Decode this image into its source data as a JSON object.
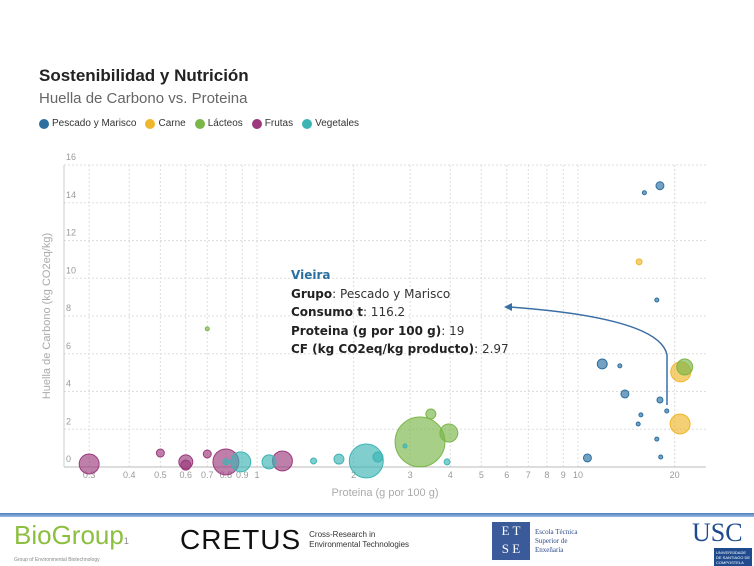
{
  "chart_data": {
    "type": "scatter",
    "title": "Sostenibilidad y Nutrición",
    "subtitle": "Huella de Carbono vs. Proteina",
    "xlabel": "Proteina (g por 100 g)",
    "ylabel": "Huella de Carbono (kg CO2eq/kg)",
    "xscale": "log",
    "xlim": [
      0.25,
      25
    ],
    "ylim": [
      0,
      16
    ],
    "xticks": [
      "0.3",
      "0.4",
      "0.5",
      "0.6",
      "0.7",
      "0.8",
      "0.9",
      "1",
      "2",
      "3",
      "4",
      "5",
      "6",
      "7",
      "8",
      "9",
      "10",
      "20"
    ],
    "xtick_values": [
      0.3,
      0.4,
      0.5,
      0.6,
      0.7,
      0.8,
      0.9,
      1,
      2,
      3,
      4,
      5,
      6,
      7,
      8,
      9,
      10,
      20
    ],
    "yticks": [
      0,
      2,
      4,
      6,
      8,
      10,
      12,
      14,
      16
    ],
    "grid": true,
    "legend_position": "top-left",
    "series": [
      {
        "name": "Pescado y Marisco",
        "color": "#2a6fa0",
        "points": [
          [
            18.0,
            14.9,
            460
          ],
          [
            16.1,
            14.53,
            116
          ],
          [
            17.6,
            8.85,
            116
          ],
          [
            11.9,
            5.46,
            720
          ],
          [
            13.5,
            5.36,
            116
          ],
          [
            14.0,
            3.87,
            460
          ],
          [
            18.0,
            3.55,
            260
          ],
          [
            15.7,
            2.76,
            116
          ],
          [
            15.4,
            2.28,
            116
          ],
          [
            18.9,
            2.97,
            116.2
          ],
          [
            17.6,
            1.48,
            116
          ],
          [
            18.1,
            0.53,
            116
          ],
          [
            10.7,
            0.48,
            460
          ]
        ]
      },
      {
        "name": "Carne",
        "color": "#f0b52a",
        "points": [
          [
            15.5,
            10.87,
            260
          ],
          [
            20.9,
            5.04,
            2900
          ],
          [
            20.8,
            2.28,
            2900
          ]
        ]
      },
      {
        "name": "Lácteos",
        "color": "#7ab648",
        "points": [
          [
            0.7,
            7.32,
            116
          ],
          [
            3.22,
            1.33,
            18100
          ],
          [
            3.48,
            2.81,
            720
          ],
          [
            3.96,
            1.8,
            2350
          ],
          [
            21.5,
            5.3,
            1850
          ]
        ]
      },
      {
        "name": "Frutas",
        "color": "#9b3a7c",
        "points": [
          [
            0.3,
            0.16,
            2900
          ],
          [
            0.5,
            0.74,
            460
          ],
          [
            0.6,
            0.27,
            1420
          ],
          [
            0.6,
            0.1,
            720
          ],
          [
            0.7,
            0.69,
            460
          ],
          [
            0.8,
            0.27,
            4900
          ],
          [
            1.2,
            0.32,
            2900
          ]
        ]
      },
      {
        "name": "Vegetales",
        "color": "#3cb4b4",
        "points": [
          [
            0.8,
            0.27,
            260
          ],
          [
            0.89,
            0.27,
            2900
          ],
          [
            1.09,
            0.27,
            1420
          ],
          [
            1.5,
            0.32,
            260
          ],
          [
            1.8,
            0.42,
            720
          ],
          [
            2.19,
            0.32,
            8400
          ],
          [
            2.38,
            0.53,
            720
          ],
          [
            2.89,
            1.11,
            116
          ],
          [
            3.91,
            0.27,
            260
          ]
        ]
      }
    ],
    "annotation": {
      "name": "Vieira",
      "rows": [
        {
          "k": "Grupo",
          "v": "Pescado y Marisco"
        },
        {
          "k": "Consumo t",
          "v": "116.2"
        },
        {
          "k": "Proteina (g por 100 g)",
          "v": "19"
        },
        {
          "k": "CF (kg CO2eq/kg producto)",
          "v": "2.97"
        }
      ]
    }
  },
  "footer": {
    "logos": [
      "BioGroup",
      "Group of Environmental Biotechnology",
      "CRETUS",
      "Cross-Research in",
      "Environmental Technologies",
      "Escola Técnica",
      "Superior de",
      "Enxeñaría",
      "USC",
      "UNIVERSIDADE DE SANTIAGO DE COMPOSTELA"
    ]
  }
}
